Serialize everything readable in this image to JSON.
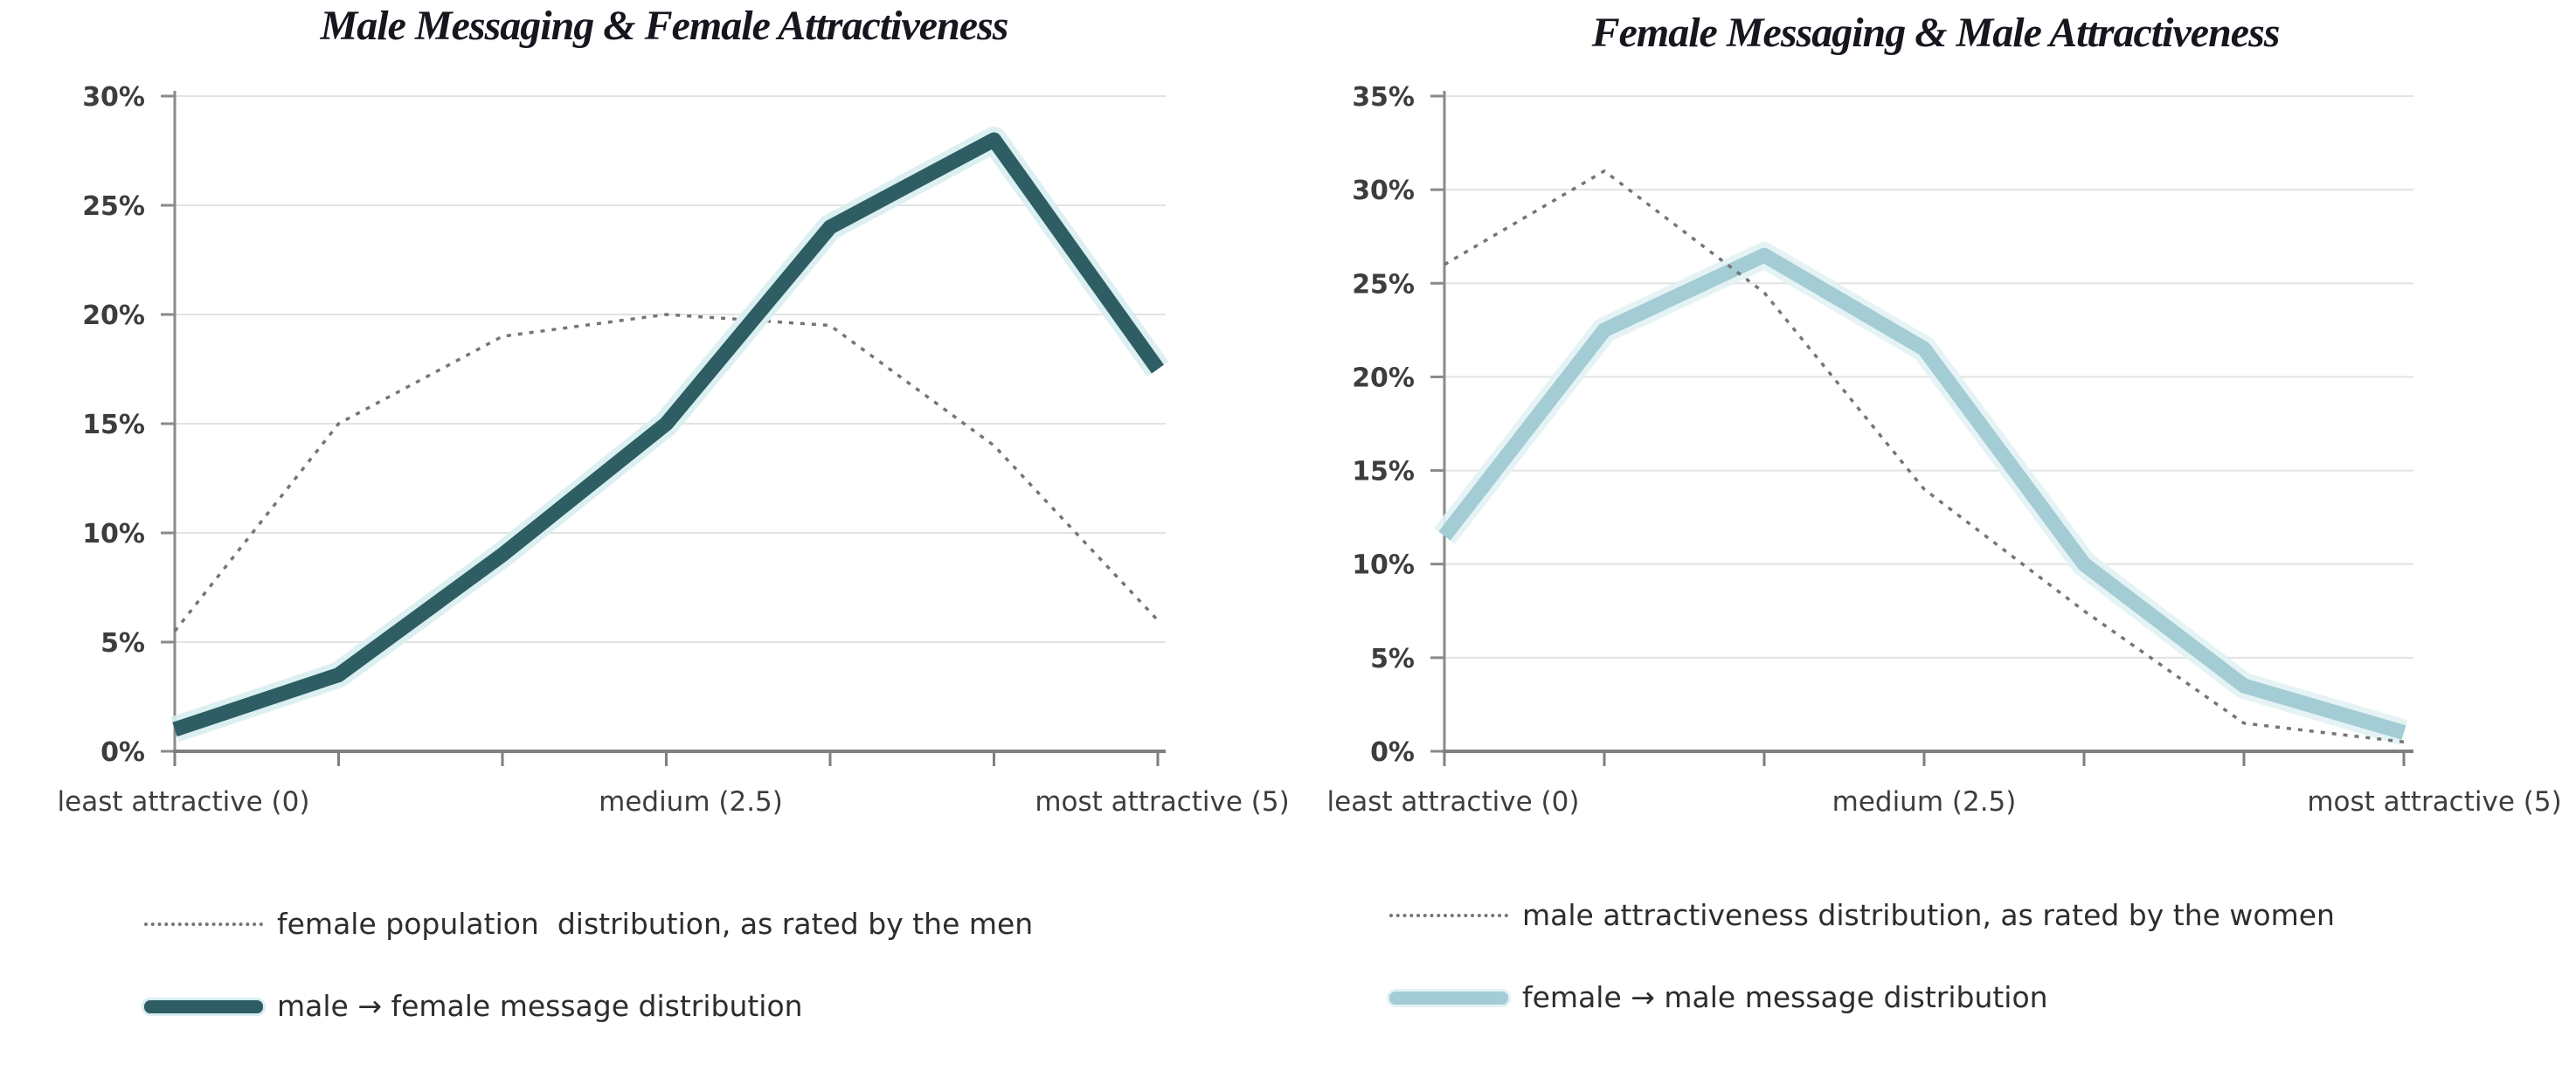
{
  "figure": {
    "background": "#ffffff",
    "grid_color": "#e3e3e3",
    "axis_color": "#8a8a8a",
    "tick_label_color": "#3d3d3d"
  },
  "chart_data": [
    {
      "type": "line",
      "title": "Male Messaging & Female Attractiveness",
      "x": [
        0,
        0.83,
        1.67,
        2.5,
        3.33,
        4.17,
        5
      ],
      "xlim": [
        0,
        5
      ],
      "x_tick_labels": [
        {
          "tick": 0,
          "dx": 10,
          "label": "least attractive (0)"
        },
        {
          "tick": 3,
          "dx": 28,
          "label": "medium (2.5)"
        },
        {
          "tick": 6,
          "dx": 5,
          "label": "most attractive (5)"
        }
      ],
      "ylim": [
        0,
        30
      ],
      "y_tick_step": 5,
      "y_tick_labels": [
        "0%",
        "5%",
        "10%",
        "15%",
        "20%",
        "25%",
        "30%"
      ],
      "grid": true,
      "legend_position": "bottom-left",
      "draw_order": [
        0,
        1
      ],
      "series": [
        {
          "name": "female population  distribution, as rated by the men",
          "style": "dotted",
          "color": "#757575",
          "values": [
            5.5,
            15,
            19,
            20,
            19.5,
            14,
            6
          ]
        },
        {
          "name": "male → female message distribution",
          "style": "thick",
          "color": "#2e5d64",
          "halo_color": "#d8edf0",
          "values": [
            1,
            3.5,
            9,
            15,
            24,
            28,
            17.5
          ]
        }
      ]
    },
    {
      "type": "line",
      "title": "Female Messaging & Male Attractiveness",
      "x": [
        0,
        0.83,
        1.67,
        2.5,
        3.33,
        4.17,
        5
      ],
      "xlim": [
        0,
        5
      ],
      "x_tick_labels": [
        {
          "tick": 0,
          "dx": 10,
          "label": "least attractive (0)"
        },
        {
          "tick": 3,
          "dx": 0,
          "label": "medium (2.5)"
        },
        {
          "tick": 6,
          "dx": 35,
          "label": "most attractive (5)"
        }
      ],
      "ylim": [
        0,
        35
      ],
      "y_tick_step": 5,
      "y_tick_labels": [
        "0%",
        "5%",
        "10%",
        "15%",
        "20%",
        "25%",
        "30%",
        "35%"
      ],
      "grid": true,
      "legend_position": "bottom-left",
      "draw_order": [
        1,
        0
      ],
      "series": [
        {
          "name": "male attractiveness distribution, as rated by the women",
          "style": "dotted",
          "color": "#757575",
          "values": [
            26,
            31,
            24.5,
            14,
            7.5,
            1.5,
            0.5
          ]
        },
        {
          "name": "female → male message distribution",
          "style": "thick",
          "color": "#a3ccd4",
          "halo_color": "#e2f2f4",
          "values": [
            11.5,
            22.5,
            26.5,
            21.5,
            10,
            3.5,
            1
          ]
        }
      ]
    }
  ]
}
